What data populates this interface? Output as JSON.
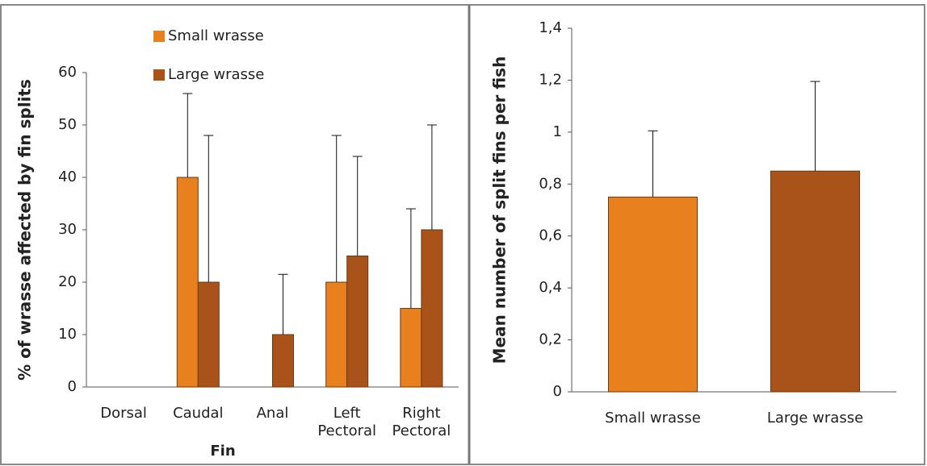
{
  "chart_data": [
    {
      "type": "bar",
      "y_label": "% of wrasse affected by fin splits",
      "x_label": "Fin",
      "categories": [
        "Dorsal",
        "Caudal",
        "Anal",
        "Left Pectoral",
        "Right Pectoral"
      ],
      "series": [
        {
          "name": "Small wrasse",
          "color": "#e8801e",
          "values": [
            0,
            40,
            0,
            20,
            15
          ],
          "errors": [
            null,
            16,
            null,
            28,
            19
          ]
        },
        {
          "name": "Large wrasse",
          "color": "#a9521a",
          "values": [
            0,
            20,
            10,
            25,
            30
          ],
          "errors": [
            null,
            28,
            11.5,
            19,
            20
          ]
        }
      ],
      "ylim": [
        0,
        60
      ],
      "yticks": [
        0,
        10,
        20,
        30,
        40,
        50,
        60
      ]
    },
    {
      "type": "bar",
      "y_label": "Mean number of split fins per fish",
      "categories": [
        "Small wrasse",
        "Large wrasse"
      ],
      "values": [
        0.75,
        0.85
      ],
      "errors": [
        0.255,
        0.345
      ],
      "colors": [
        "#e8801e",
        "#a9521a"
      ],
      "ylim": [
        0,
        1.4
      ],
      "yticks": [
        0,
        {
          "value": 0.2,
          "label": "0,2"
        },
        {
          "value": 0.4,
          "label": "0,4"
        },
        {
          "value": 0.6,
          "label": "0,6"
        },
        {
          "value": 0.8,
          "label": "0,8"
        },
        1,
        {
          "value": 1.2,
          "label": "1,2"
        },
        {
          "value": 1.4,
          "label": "1,4"
        }
      ]
    }
  ]
}
